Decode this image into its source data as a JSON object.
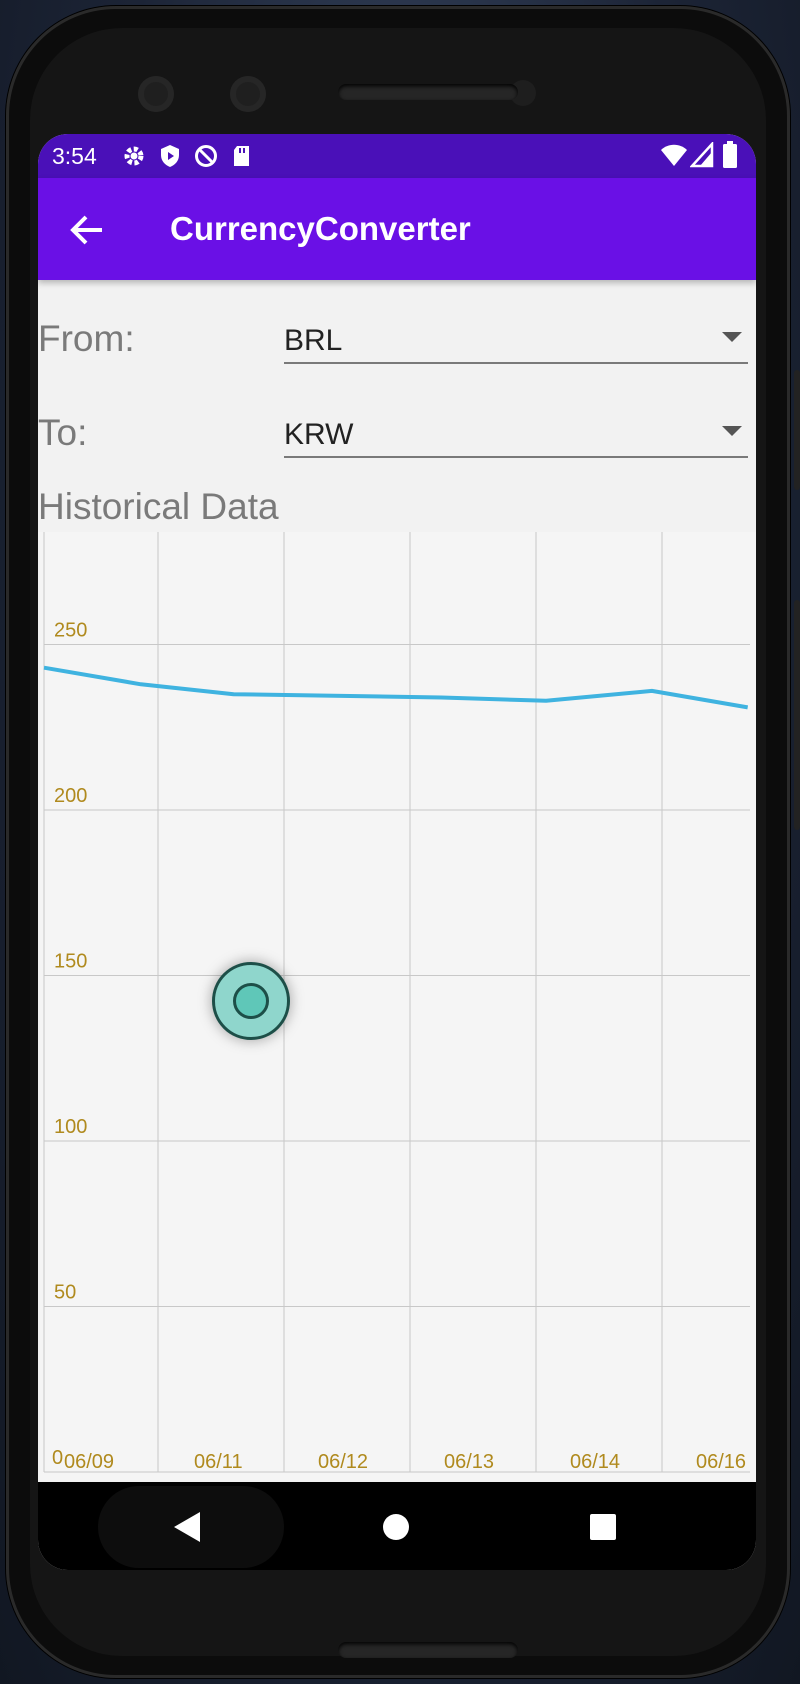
{
  "status_bar": {
    "time": "3:54"
  },
  "app_bar": {
    "title": "CurrencyConverter"
  },
  "form": {
    "from_label": "From:",
    "from_value": "BRL",
    "to_label": "To:",
    "to_value": "KRW"
  },
  "section_title": "Historical Data",
  "colors": {
    "status_bar": "#4a10b8",
    "app_bar": "#6a10e6",
    "line": "#3fb3e0",
    "tick_text": "#b08a1e"
  },
  "chart_data": {
    "type": "line",
    "title": "",
    "xlabel": "",
    "ylabel": "",
    "x_tick_labels": [
      "06/09",
      "06/11",
      "06/12",
      "06/13",
      "06/14",
      "06/16"
    ],
    "y_tick_labels": [
      "0",
      "50",
      "100",
      "150",
      "200",
      "250"
    ],
    "ylim": [
      0,
      284
    ],
    "grid": true,
    "series": [
      {
        "name": "",
        "x_index": [
          0,
          0.85,
          1.6,
          3.25,
          4.08,
          4.92,
          5.68
        ],
        "values": [
          243,
          238,
          235,
          234,
          233,
          236,
          231
        ]
      }
    ]
  }
}
